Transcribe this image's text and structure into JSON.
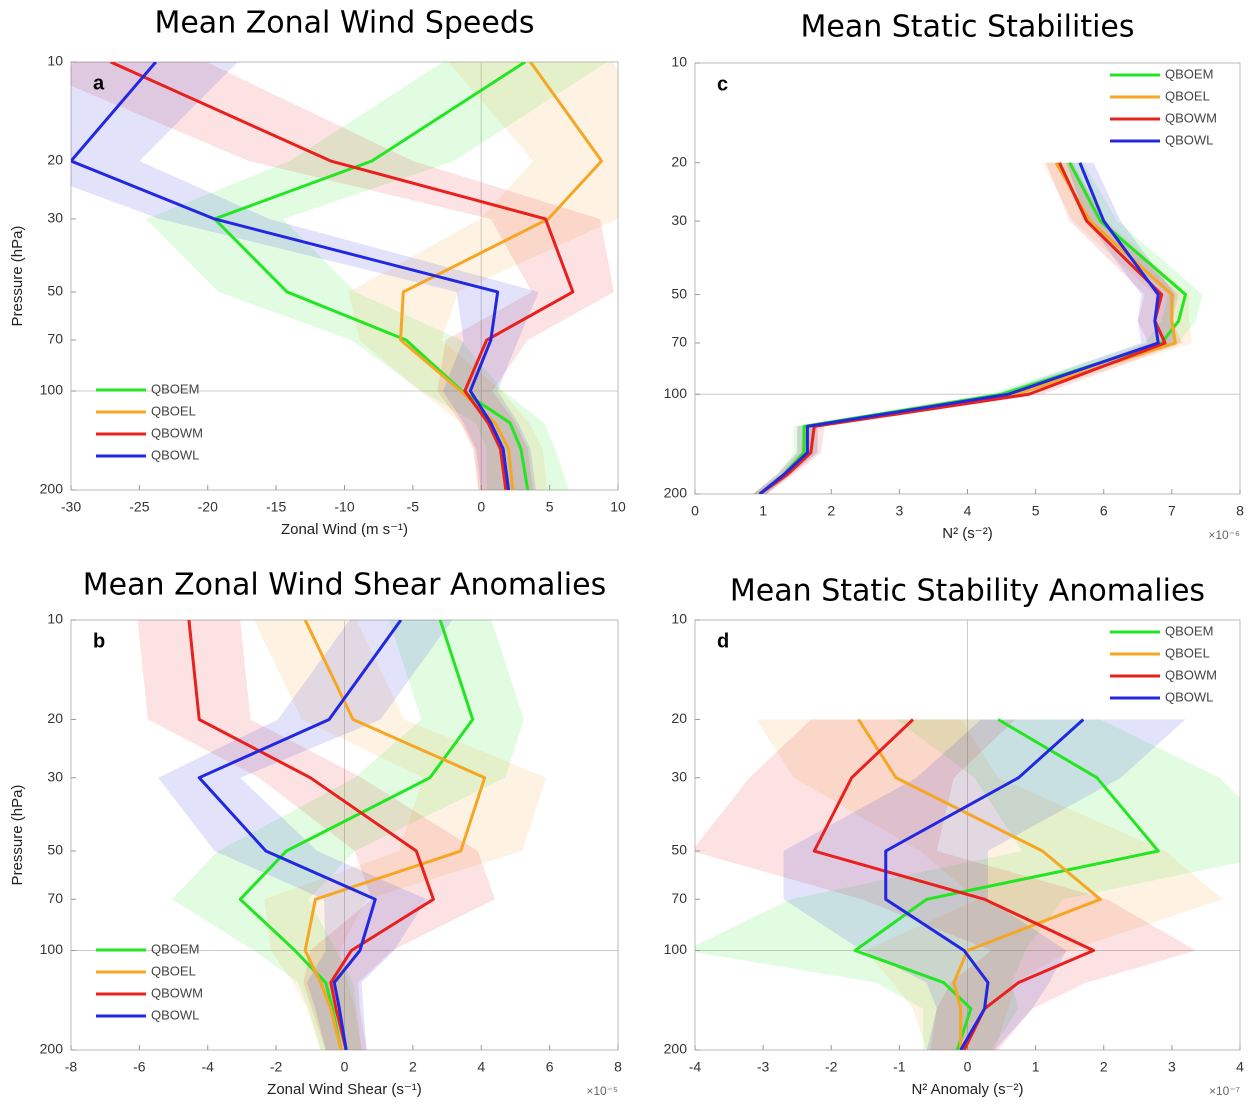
{
  "chart_data": [
    {
      "type": "line",
      "title": "Mean Zonal Wind Speeds",
      "letter": "a",
      "xlabel": "Zonal Wind (m s⁻¹)",
      "ylabel": "Pressure (hPa)",
      "xlim": [
        -30,
        10
      ],
      "xticks": [
        -30,
        -25,
        -20,
        -15,
        -10,
        -5,
        0,
        5,
        10
      ],
      "ylim": [
        200,
        10
      ],
      "ylog": true,
      "yticks": [
        10,
        20,
        30,
        50,
        70,
        100,
        200
      ],
      "xline": 0,
      "yline": 100,
      "legend": "lower left",
      "y": [
        10,
        20,
        30,
        50,
        70,
        100,
        125,
        150,
        200
      ],
      "series": [
        {
          "name": "QBOEM",
          "color": "#22e622",
          "values": [
            3.2,
            -8,
            -19.5,
            -14.2,
            -5.5,
            -1.4,
            2.1,
            2.9,
            3.4
          ],
          "error": [
            6,
            6,
            5,
            5,
            4,
            3,
            2.5,
            2.5,
            3
          ]
        },
        {
          "name": "QBOEL",
          "color": "#f5a623",
          "values": [
            3.6,
            8.8,
            4.9,
            -5.7,
            -5.9,
            -1.5,
            1,
            2,
            2.3
          ],
          "error": [
            6,
            5,
            5,
            4,
            3,
            3,
            2.5,
            2.5,
            2.5
          ]
        },
        {
          "name": "QBOWM",
          "color": "#e8201e",
          "values": [
            -27.1,
            -11,
            4.7,
            6.7,
            0.4,
            -1.2,
            0.5,
            1.4,
            1.8
          ],
          "error": [
            7,
            6,
            4,
            3,
            3,
            2,
            2,
            2,
            2
          ]
        },
        {
          "name": "QBOWL",
          "color": "#2228e0",
          "values": [
            -23.8,
            -30,
            -19.5,
            1.2,
            0.7,
            -0.8,
            0.7,
            1.6,
            2
          ],
          "error": [
            6,
            5,
            4,
            3,
            2,
            2,
            2,
            2,
            2
          ]
        }
      ]
    },
    {
      "type": "line",
      "title": "Mean Zonal Wind Shear Anomalies",
      "letter": "b",
      "xlabel": "Zonal Wind Shear (s⁻¹)",
      "ylabel": "Pressure (hPa)",
      "multiplier": "×10⁻⁵",
      "xlim": [
        -8,
        8
      ],
      "xticks": [
        -8,
        -6,
        -4,
        -2,
        0,
        2,
        4,
        6,
        8
      ],
      "ylim": [
        200,
        10
      ],
      "ylog": true,
      "yticks": [
        10,
        20,
        30,
        50,
        70,
        100,
        200
      ],
      "xline": 0,
      "yline": 100,
      "legend": "lower left",
      "y": [
        10,
        20,
        30,
        50,
        70,
        100,
        125,
        150,
        200
      ],
      "series": [
        {
          "name": "QBOEM",
          "color": "#22e622",
          "values": [
            2.8,
            3.75,
            2.5,
            -1.7,
            -3.05,
            -1.45,
            -0.55,
            -0.35,
            -0.1
          ],
          "error": [
            1.5,
            1.5,
            2.2,
            2,
            2,
            1.2,
            0.8,
            0.7,
            0.6
          ]
        },
        {
          "name": "QBOEL",
          "color": "#f5a623",
          "values": [
            -1.15,
            0.25,
            4.1,
            3.4,
            -0.85,
            -1.15,
            -0.7,
            -0.4,
            -0.1
          ],
          "error": [
            1.5,
            1.5,
            1.8,
            1.8,
            1.5,
            1,
            0.8,
            0.7,
            0.6
          ]
        },
        {
          "name": "QBOWM",
          "color": "#e8201e",
          "values": [
            -4.55,
            -4.25,
            -1,
            2.1,
            2.6,
            0.2,
            -0.4,
            -0.25,
            0.05
          ],
          "error": [
            1.5,
            1.5,
            1.5,
            1.8,
            1.8,
            1.2,
            0.8,
            0.7,
            0.6
          ]
        },
        {
          "name": "QBOWL",
          "color": "#2228e0",
          "values": [
            1.65,
            -0.45,
            -4.25,
            -2.3,
            0.9,
            0.45,
            -0.3,
            -0.15,
            0.05
          ],
          "error": [
            1.5,
            1.5,
            1.2,
            1.5,
            1.5,
            1,
            0.8,
            0.7,
            0.6
          ]
        }
      ]
    },
    {
      "type": "line",
      "title": "Mean Static Stabilities",
      "letter": "c",
      "xlabel": "N² (s⁻²)",
      "multiplier": "×10⁻⁶",
      "xlim": [
        0,
        8
      ],
      "xticks": [
        0,
        1,
        2,
        3,
        4,
        5,
        6,
        7,
        8
      ],
      "ylim": [
        200,
        10
      ],
      "ylog": true,
      "yticks": [
        10,
        20,
        30,
        50,
        70,
        100,
        200
      ],
      "yline": 100,
      "legend": "upper right",
      "y": [
        20,
        30,
        50,
        60,
        70,
        100,
        125,
        150,
        175,
        200
      ],
      "series": [
        {
          "name": "QBOEM",
          "color": "#22e622",
          "values": [
            5.5,
            5.95,
            7.2,
            7.1,
            6.85,
            4.5,
            1.6,
            1.6,
            1.3,
            0.95
          ],
          "error": [
            0.2,
            0.25,
            0.25,
            0.25,
            0.25,
            0.2,
            0.15,
            0.15,
            0.1,
            0.1
          ]
        },
        {
          "name": "QBOEL",
          "color": "#f5a623",
          "values": [
            5.3,
            5.8,
            7,
            7,
            7.05,
            4.7,
            1.65,
            1.65,
            1.3,
            0.95
          ],
          "error": [
            0.2,
            0.25,
            0.25,
            0.25,
            0.25,
            0.2,
            0.15,
            0.15,
            0.1,
            0.1
          ]
        },
        {
          "name": "QBOWM",
          "color": "#e8201e",
          "values": [
            5.35,
            5.75,
            6.85,
            6.75,
            6.9,
            4.9,
            1.75,
            1.7,
            1.35,
            0.95
          ],
          "error": [
            0.2,
            0.25,
            0.25,
            0.25,
            0.25,
            0.2,
            0.15,
            0.15,
            0.1,
            0.1
          ]
        },
        {
          "name": "QBOWL",
          "color": "#2228e0",
          "values": [
            5.65,
            6,
            6.8,
            6.75,
            6.8,
            4.6,
            1.65,
            1.65,
            1.3,
            0.95
          ],
          "error": [
            0.2,
            0.25,
            0.25,
            0.25,
            0.25,
            0.2,
            0.15,
            0.15,
            0.1,
            0.1
          ]
        }
      ]
    },
    {
      "type": "line",
      "title": "Mean Static Stability Anomalies",
      "letter": "d",
      "xlabel": "N²  Anomaly (s⁻²)",
      "multiplier": "×10⁻⁷",
      "xlim": [
        -4,
        4
      ],
      "xticks": [
        -4,
        -3,
        -2,
        -1,
        0,
        1,
        2,
        3,
        4
      ],
      "ylim": [
        200,
        10
      ],
      "ylog": true,
      "yticks": [
        10,
        20,
        30,
        50,
        70,
        100,
        200
      ],
      "xline": 0,
      "yline": 100,
      "legend": "upper right",
      "y": [
        20,
        30,
        50,
        70,
        100,
        125,
        150,
        200
      ],
      "series": [
        {
          "name": "QBOEM",
          "color": "#22e622",
          "values": [
            0.45,
            1.9,
            2.8,
            -0.6,
            -1.65,
            -0.35,
            0.05,
            -0.15
          ],
          "error": [
            1.5,
            1.8,
            2,
            2,
            2.5,
            1,
            0.7,
            0.5
          ]
        },
        {
          "name": "QBOEL",
          "color": "#f5a623",
          "values": [
            -1.6,
            -1.05,
            1.1,
            1.95,
            0,
            -0.2,
            -0.1,
            -0.1
          ],
          "error": [
            1.5,
            1.5,
            1.8,
            1.8,
            1.5,
            0.9,
            0.7,
            0.5
          ]
        },
        {
          "name": "QBOWM",
          "color": "#e8201e",
          "values": [
            -0.8,
            -1.7,
            -2.25,
            0.25,
            1.85,
            0.75,
            0.25,
            -0.05
          ],
          "error": [
            1.5,
            1.5,
            1.8,
            1.8,
            1.5,
            1,
            0.7,
            0.5
          ]
        },
        {
          "name": "QBOWL",
          "color": "#2228e0",
          "values": [
            1.7,
            0.75,
            -1.2,
            -1.2,
            -0.05,
            0.3,
            0.25,
            -0.1
          ],
          "error": [
            1.5,
            1.5,
            1.5,
            1.5,
            1.5,
            0.9,
            0.7,
            0.5
          ]
        }
      ]
    }
  ]
}
